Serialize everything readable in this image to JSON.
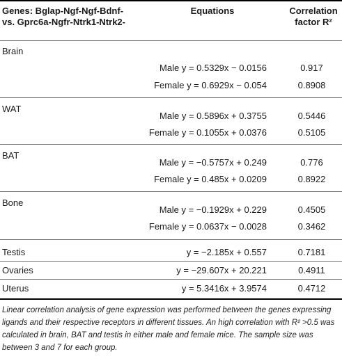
{
  "header": {
    "genes": "Genes: Bglap-Ngf-Ngf-Bdnf- vs. Gprc6a-Ngfr-Ntrk1-Ntrk2-",
    "equations": "Equations",
    "correlation": "Correlation factor R²"
  },
  "rows": [
    {
      "tissue": "Brain",
      "male_eq": "Male y = 0.5329x − 0.0156",
      "male_r": "0.917",
      "female_eq": "Female y = 0.6929x − 0.054",
      "female_r": "0.8908"
    },
    {
      "tissue": "WAT",
      "male_eq": "Male y = 0.5896x + 0.3755",
      "male_r": "0.5446",
      "female_eq": "Female y = 0.1055x + 0.0376",
      "female_r": "0.5105"
    },
    {
      "tissue": "BAT",
      "male_eq": "Male y = −0.5757x + 0.249",
      "male_r": "0.776",
      "female_eq": "Female y = 0.485x + 0.0209",
      "female_r": "0.8922"
    },
    {
      "tissue": "Bone",
      "male_eq": "Male y = −0.1929x + 0.229",
      "male_r": "0.4505",
      "female_eq": "Female y = 0.0637x − 0.0028",
      "female_r": "0.3462"
    }
  ],
  "single_rows": [
    {
      "tissue": "Testis",
      "eq": "y = −2.185x + 0.557",
      "r": "0.7181"
    },
    {
      "tissue": "Ovaries",
      "eq": "y = −29.607x + 20.221",
      "r": "0.4911"
    },
    {
      "tissue": "Uterus",
      "eq": "y = 5.3416x + 3.9574",
      "r": "0.4712"
    }
  ],
  "footnote": "Linear correlation analysis of gene expression was performed between the genes expressing ligands and their respective receptors in different tissues. An high correlation with R² >0.5 was calculated in brain, BAT and testis in either male and female mice. The sample size was between 3 and 7 for each group."
}
